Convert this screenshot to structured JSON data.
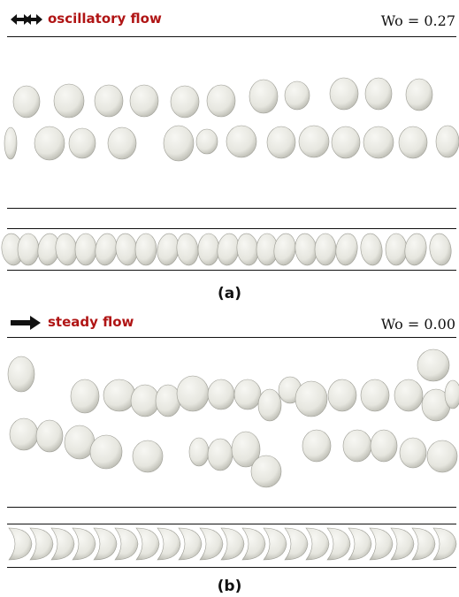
{
  "panel_a": {
    "flow_label": "oscillatory flow",
    "wo_label": "Wo = 0.27",
    "caption": "(a)",
    "arrow_icon": "double-headed-arrow-icon"
  },
  "panel_b": {
    "flow_label": "steady flow",
    "wo_label": "Wo = 0.00",
    "caption": "(b)",
    "arrow_icon": "right-arrow-icon"
  },
  "colors": {
    "label_red": "#b01515",
    "cell_fill": "#e6e6df",
    "cell_shade": "#b7b7ae",
    "line": "#111111"
  }
}
